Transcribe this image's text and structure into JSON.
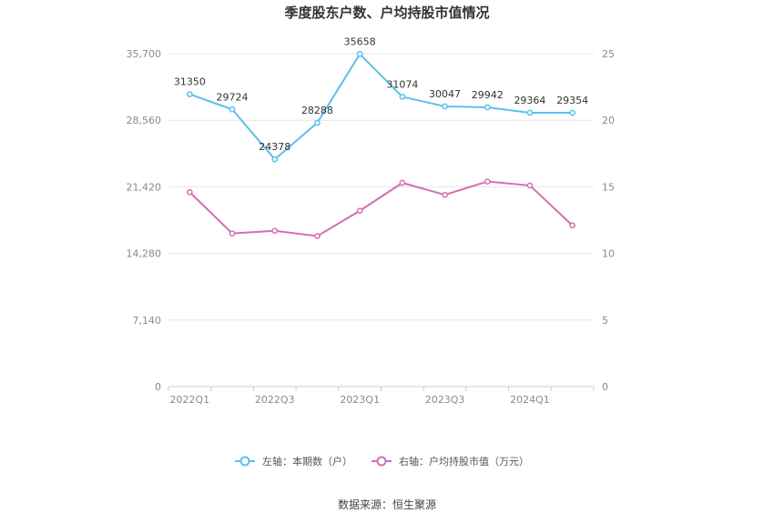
{
  "chart_data": {
    "type": "line",
    "title": "季度股东户数、户均持股市值情况",
    "source": "数据来源：恒生聚源",
    "categories": [
      "2022Q1",
      "2022Q2",
      "2022Q3",
      "2022Q4",
      "2023Q1",
      "2023Q2",
      "2023Q3",
      "2023Q4",
      "2024Q1",
      "2024Q2"
    ],
    "x_tick_labels": [
      "2022Q1",
      "",
      "2022Q3",
      "",
      "2023Q1",
      "",
      "2023Q3",
      "",
      "2024Q1",
      ""
    ],
    "left_axis": {
      "ticks": [
        "0",
        "7,140",
        "14,280",
        "21,420",
        "28,560",
        "35,700"
      ],
      "ylim": [
        0,
        35700
      ]
    },
    "right_axis": {
      "ticks": [
        "0",
        "5",
        "10",
        "15",
        "20",
        "25"
      ],
      "ylim": [
        0,
        25
      ]
    },
    "grid": true,
    "legend_position": "bottom",
    "series": [
      {
        "name": "左轴：本期数（户）",
        "axis": "left",
        "color": "#5bc0eb",
        "values": [
          31350,
          29724,
          24378,
          28288,
          35658,
          31074,
          30047,
          29942,
          29364,
          29354
        ],
        "labels": [
          "31350",
          "29724",
          "24378",
          "28288",
          "35658",
          "31074",
          "30047",
          "29942",
          "29364",
          "29354"
        ]
      },
      {
        "name": "右轴：户均持股市值（万元）",
        "axis": "right",
        "color": "#d36fb1",
        "values": [
          14.6,
          11.5,
          11.7,
          11.3,
          13.2,
          15.3,
          14.4,
          15.4,
          15.1,
          12.1
        ]
      }
    ]
  }
}
